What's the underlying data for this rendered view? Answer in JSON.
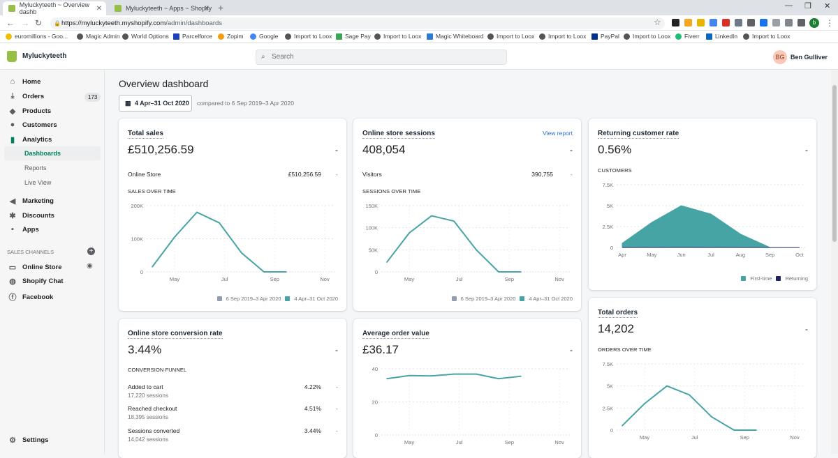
{
  "browser": {
    "tabs": [
      {
        "title": "Myluckyteeth ~ Overview dashb"
      },
      {
        "title": "Myluckyteeth ~ Apps ~ Shopify"
      }
    ],
    "url_host": "https://myluckyteeth.myshopify.com",
    "url_path": "/admin/dashboards",
    "profile_initial": "b",
    "bookmarks": [
      "euromillions - Goo...",
      "Magic Admin",
      "World Options",
      "Parcelforce",
      "Zopim",
      "Google",
      "Import to Loox",
      "Sage Pay",
      "Import to Loox",
      "Magic Whiteboard",
      "Import to Loox",
      "Import to Loox",
      "PayPal",
      "Import to Loox",
      "Fiverr",
      "LinkedIn",
      "Import to Loox"
    ]
  },
  "topbar": {
    "store_name": "Myluckyteeth",
    "search_placeholder": "Search",
    "user_initials": "BG",
    "user_name": "Ben Gulliver"
  },
  "sidebar": {
    "items": [
      {
        "label": "Home",
        "icon": "home-icon"
      },
      {
        "label": "Orders",
        "icon": "orders-icon",
        "badge": "173"
      },
      {
        "label": "Products",
        "icon": "tag-icon"
      },
      {
        "label": "Customers",
        "icon": "person-icon"
      },
      {
        "label": "Analytics",
        "icon": "analytics-icon"
      }
    ],
    "analytics_sub": [
      "Dashboards",
      "Reports",
      "Live View"
    ],
    "items2": [
      {
        "label": "Marketing",
        "icon": "megaphone-icon"
      },
      {
        "label": "Discounts",
        "icon": "discount-icon"
      },
      {
        "label": "Apps",
        "icon": "apps-icon"
      }
    ],
    "channels_label": "SALES CHANNELS",
    "channels": [
      {
        "label": "Online Store",
        "icon": "store-icon"
      },
      {
        "label": "Shopify Chat",
        "icon": "chat-icon"
      },
      {
        "label": "Facebook",
        "icon": "facebook-icon"
      }
    ],
    "settings_label": "Settings"
  },
  "page": {
    "title": "Overview dashboard",
    "date_range": "4 Apr–31 Oct 2020",
    "compared": "compared to 6 Sep 2019–3 Apr 2020"
  },
  "cards": {
    "total_sales": {
      "title": "Total sales",
      "value": "£510,256.59",
      "dash": "-",
      "row_label": "Online Store",
      "row_value": "£510,256.59",
      "row_dash": "-",
      "chart_label": "SALES OVER TIME",
      "legend_prev": "6 Sep 2019–3 Apr 2020",
      "legend_cur": "4 Apr–31 Oct 2020"
    },
    "sessions": {
      "title": "Online store sessions",
      "link": "View report",
      "value": "408,054",
      "dash": "-",
      "row_label": "Visitors",
      "row_value": "390,755",
      "row_dash": "-",
      "chart_label": "SESSIONS OVER TIME",
      "legend_prev": "6 Sep 2019–3 Apr 2020",
      "legend_cur": "4 Apr–31 Oct 2020"
    },
    "returning": {
      "title": "Returning customer rate",
      "value": "0.56%",
      "dash": "-",
      "chart_label": "CUSTOMERS",
      "legend_first": "First-time",
      "legend_returning": "Returning"
    },
    "conversion": {
      "title": "Online store conversion rate",
      "value": "3.44%",
      "dash": "-",
      "funnel_label": "CONVERSION FUNNEL",
      "rows": [
        {
          "label": "Added to cart",
          "sub": "17,220 sessions",
          "value": "4.22%",
          "dash": "-"
        },
        {
          "label": "Reached checkout",
          "sub": "18,395 sessions",
          "value": "4.51%",
          "dash": "-"
        },
        {
          "label": "Sessions converted",
          "sub": "14,042 sessions",
          "value": "3.44%",
          "dash": "-"
        }
      ]
    },
    "aov": {
      "title": "Average order value",
      "value": "£36.17",
      "dash": "-"
    },
    "orders": {
      "title": "Total orders",
      "value": "14,202",
      "dash": "-",
      "chart_label": "ORDERS OVER TIME"
    }
  },
  "colors": {
    "accent": "#47a4a4",
    "shopify_green": "#008060",
    "returning": "#1c2260",
    "prev": "#919eab"
  },
  "chart_data": [
    {
      "id": "sales",
      "type": "line",
      "x": [
        "Apr",
        "May",
        "Jun",
        "Jul",
        "Aug",
        "Sep",
        "Oct"
      ],
      "xticks": [
        "May",
        "Jul",
        "Sep",
        "Nov"
      ],
      "yticks": [
        "0",
        "100K",
        "200K"
      ],
      "ylim": [
        0,
        200000
      ],
      "series": [
        {
          "name": "4 Apr–31 Oct 2020",
          "values": [
            15000,
            105000,
            180000,
            148000,
            57000,
            0,
            0
          ]
        }
      ]
    },
    {
      "id": "sessions",
      "type": "line",
      "x": [
        "Apr",
        "May",
        "Jun",
        "Jul",
        "Aug",
        "Sep",
        "Oct"
      ],
      "xticks": [
        "May",
        "Jul",
        "Sep",
        "Nov"
      ],
      "yticks": [
        "0",
        "50K",
        "100K",
        "150K"
      ],
      "ylim": [
        0,
        150000
      ],
      "series": [
        {
          "name": "4 Apr–31 Oct 2020",
          "values": [
            22000,
            88000,
            127000,
            115000,
            50000,
            0,
            0
          ]
        }
      ]
    },
    {
      "id": "customers",
      "type": "area",
      "x": [
        "Apr",
        "May",
        "Jun",
        "Jul",
        "Aug",
        "Sep",
        "Oct"
      ],
      "xticks": [
        "Apr",
        "May",
        "Jun",
        "Jul",
        "Aug",
        "Sep",
        "Oct"
      ],
      "yticks": [
        "0",
        "2.5K",
        "5K",
        "7.5K"
      ],
      "ylim": [
        0,
        7500
      ],
      "series": [
        {
          "name": "First-time",
          "values": [
            500,
            3000,
            5000,
            4000,
            1600,
            0,
            0
          ]
        },
        {
          "name": "Returning",
          "values": [
            0,
            20,
            30,
            25,
            10,
            0,
            0
          ]
        }
      ]
    },
    {
      "id": "aov",
      "type": "line",
      "x": [
        "Apr",
        "May",
        "Jun",
        "Jul",
        "Aug",
        "Sep",
        "Oct"
      ],
      "xticks": [
        "May",
        "Jul",
        "Sep",
        "Nov"
      ],
      "yticks": [
        "0",
        "20",
        "40"
      ],
      "ylim": [
        0,
        40
      ],
      "series": [
        {
          "values": [
            34.0,
            35.9,
            35.7,
            36.8,
            36.8,
            34.0,
            35.5
          ]
        }
      ]
    },
    {
      "id": "orders",
      "type": "line",
      "x": [
        "Apr",
        "May",
        "Jun",
        "Jul",
        "Aug",
        "Sep",
        "Oct"
      ],
      "xticks": [
        "May",
        "Jul",
        "Sep",
        "Nov"
      ],
      "yticks": [
        "0",
        "2.5K",
        "5K",
        "7.5K"
      ],
      "ylim": [
        0,
        7500
      ],
      "series": [
        {
          "values": [
            500,
            3000,
            5000,
            4000,
            1500,
            0,
            0
          ]
        }
      ]
    }
  ]
}
